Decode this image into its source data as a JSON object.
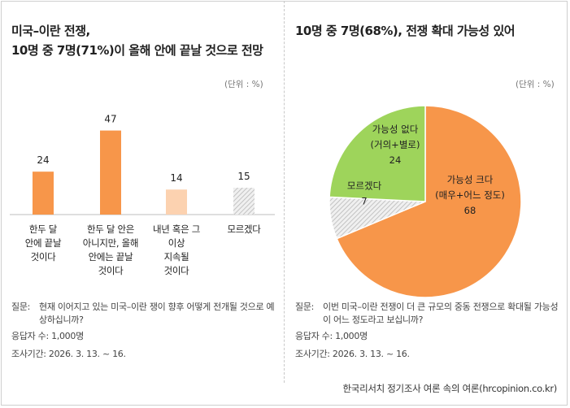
{
  "left": {
    "title_line1": "미국–이란 전쟁,",
    "title_line2": "10명 중 7명(71%)이 올해 안에 끝날 것으로 전망",
    "unit": "(단위 : %)",
    "question_label": "질문:",
    "question_text": "현재 이어지고 있는 미국–이란 쟁이 향후 어떻게 전개될 것으로 예상하십니까?",
    "respondents": "응답자 수: 1,000명",
    "period": "조사기간: 2026. 3. 13. ~ 16."
  },
  "right": {
    "title": "10명 중 7명(68%), 전쟁 확대 가능성 있어",
    "unit": "(단위 : %)",
    "question_label": "질문:",
    "question_text": "이번 미국–이란 전쟁이 더 큰 규모의 중동 전쟁으로 확대될 가능성이 어느 정도라고 보십니까?",
    "respondents": "응답자 수: 1,000명",
    "period": "조사기간: 2026. 3. 13. ~ 16."
  },
  "source": "한국리서치 정기조사 여론 속의 여론(hrcopinion.co.kr)",
  "colors": {
    "orange": "#f7964a",
    "peach": "#fcd2b0",
    "green": "#9ed45b",
    "gray": "#d9d9d9"
  },
  "chart_data": [
    {
      "type": "bar",
      "title": "미국–이란 전쟁, 10명 중 7명(71%)이 올해 안에 끝날 것으로 전망",
      "categories": [
        "한두 달 안에 끝날 것이다",
        "한두 달 안은 아니지만, 올해 안에는 끝날 것이다",
        "내년 혹은 그 이상 지속될 것이다",
        "모르겠다"
      ],
      "category_lines": [
        [
          "한두 달",
          "안에 끝날",
          "것이다"
        ],
        [
          "한두 달 안은",
          "아니지만, 올해",
          "안에는 끝날",
          "것이다"
        ],
        [
          "내년 혹은 그",
          "이상",
          "지속될",
          "것이다"
        ],
        [
          "모르겠다"
        ]
      ],
      "values": [
        24,
        47,
        14,
        15
      ],
      "styles": [
        "orange",
        "orange",
        "peach",
        "hatched"
      ],
      "ylim": [
        0,
        50
      ],
      "unit": "%"
    },
    {
      "type": "pie",
      "title": "10명 중 7명(68%), 전쟁 확대 가능성 있어",
      "slices": [
        {
          "label": "가능성 크다",
          "sublabel": "(매우+어느 정도)",
          "value": 68,
          "style": "orange"
        },
        {
          "label": "모르겠다",
          "sublabel": "",
          "value": 7,
          "style": "hatched"
        },
        {
          "label": "가능성 없다",
          "sublabel": "(거의+별로)",
          "value": 24,
          "style": "green"
        }
      ],
      "unit": "%"
    }
  ]
}
